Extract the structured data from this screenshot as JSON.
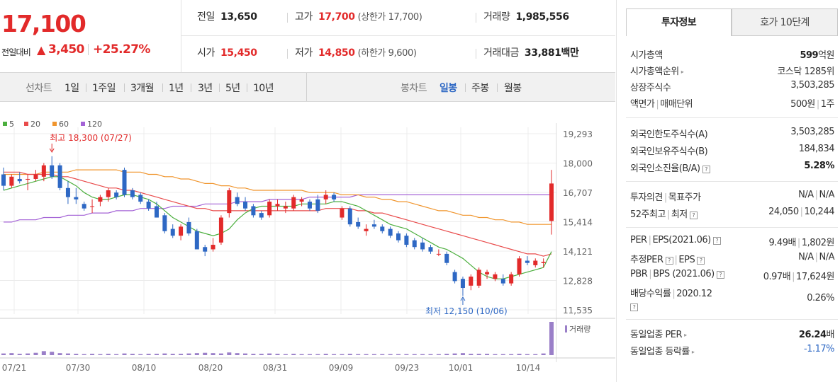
{
  "price": {
    "current": "17,100",
    "change_label": "전일대비",
    "change_arrow": "▲",
    "change_amount": "3,450",
    "change_pct": "+25.27%"
  },
  "stats": {
    "prev_label": "전일",
    "prev_value": "13,650",
    "high_label": "고가",
    "high_value": "17,700",
    "upper_limit": "(상한가 17,700)",
    "volume_label": "거래량",
    "volume_value": "1,985,556",
    "open_label": "시가",
    "open_value": "15,450",
    "low_label": "저가",
    "low_value": "14,850",
    "lower_limit": "(하한가 9,600)",
    "amount_label": "거래대금",
    "amount_value": "33,881",
    "amount_unit": "백만"
  },
  "toolbar": {
    "line_chart_label": "선차트",
    "line_periods": [
      "1일",
      "1주일",
      "3개월",
      "1년",
      "3년",
      "5년",
      "10년"
    ],
    "candle_label": "봉차트",
    "candle_periods": [
      "일봉",
      "주봉",
      "월봉"
    ],
    "active_candle_period": "일봉"
  },
  "chart_data": {
    "type": "candlestick",
    "legend": [
      {
        "name": "5",
        "color": "#4caf3e"
      },
      {
        "name": "20",
        "color": "#e94b4b"
      },
      {
        "name": "60",
        "color": "#f0952d"
      },
      {
        "name": "120",
        "color": "#a463d6"
      }
    ],
    "y_ticks": [
      19293,
      18000,
      16707,
      15414,
      14121,
      12828,
      11535
    ],
    "ylim": [
      11535,
      19293
    ],
    "x_ticks": [
      "07/21",
      "07/30",
      "08/10",
      "08/20",
      "08/31",
      "09/09",
      "09/23",
      "10/01",
      "10/14"
    ],
    "annotations": {
      "high": "최고 18,300 (07/27)",
      "low": "최저 12,150 (10/06)"
    },
    "volume_label": "거래량",
    "candles": [
      {
        "o": 17500,
        "h": 17800,
        "l": 16800,
        "c": 17000
      },
      {
        "o": 17000,
        "h": 17500,
        "l": 16900,
        "c": 17400
      },
      {
        "o": 17300,
        "h": 17600,
        "l": 17100,
        "c": 17200
      },
      {
        "o": 17300,
        "h": 17500,
        "l": 16800,
        "c": 17300
      },
      {
        "o": 17300,
        "h": 17700,
        "l": 17200,
        "c": 17500
      },
      {
        "o": 17400,
        "h": 18000,
        "l": 17200,
        "c": 17900
      },
      {
        "o": 17900,
        "h": 18300,
        "l": 17300,
        "c": 17400
      },
      {
        "o": 17900,
        "h": 18000,
        "l": 16800,
        "c": 16900
      },
      {
        "o": 16900,
        "h": 17200,
        "l": 16200,
        "c": 16500
      },
      {
        "o": 16500,
        "h": 16900,
        "l": 16200,
        "c": 16400
      },
      {
        "o": 16200,
        "h": 16300,
        "l": 15900,
        "c": 16000
      },
      {
        "o": 16100,
        "h": 16400,
        "l": 15800,
        "c": 16100
      },
      {
        "o": 16300,
        "h": 16600,
        "l": 16100,
        "c": 16500
      },
      {
        "o": 16500,
        "h": 16900,
        "l": 16300,
        "c": 16800
      },
      {
        "o": 16700,
        "h": 16800,
        "l": 16400,
        "c": 16500
      },
      {
        "o": 17700,
        "h": 17800,
        "l": 16500,
        "c": 16600
      },
      {
        "o": 16800,
        "h": 16900,
        "l": 16400,
        "c": 16500
      },
      {
        "o": 16600,
        "h": 16700,
        "l": 16200,
        "c": 16300
      },
      {
        "o": 16300,
        "h": 16400,
        "l": 15900,
        "c": 16000
      },
      {
        "o": 16100,
        "h": 16300,
        "l": 15600,
        "c": 15600
      },
      {
        "o": 15700,
        "h": 15800,
        "l": 14900,
        "c": 15000
      },
      {
        "o": 15100,
        "h": 15300,
        "l": 14700,
        "c": 14800
      },
      {
        "o": 14800,
        "h": 15300,
        "l": 14600,
        "c": 15200
      },
      {
        "o": 15400,
        "h": 15600,
        "l": 14800,
        "c": 14900
      },
      {
        "o": 15000,
        "h": 15100,
        "l": 14200,
        "c": 14200
      },
      {
        "o": 14300,
        "h": 14400,
        "l": 13900,
        "c": 14100
      },
      {
        "o": 14200,
        "h": 14700,
        "l": 14100,
        "c": 14400
      },
      {
        "o": 14500,
        "h": 15700,
        "l": 14400,
        "c": 15600
      },
      {
        "o": 15800,
        "h": 16900,
        "l": 15600,
        "c": 16800
      },
      {
        "o": 16500,
        "h": 16700,
        "l": 16100,
        "c": 16200
      },
      {
        "o": 16300,
        "h": 16500,
        "l": 15900,
        "c": 16000
      },
      {
        "o": 16100,
        "h": 16200,
        "l": 15600,
        "c": 15700
      },
      {
        "o": 15800,
        "h": 15900,
        "l": 15500,
        "c": 15600
      },
      {
        "o": 15700,
        "h": 16400,
        "l": 15600,
        "c": 16300
      },
      {
        "o": 16100,
        "h": 16400,
        "l": 15900,
        "c": 16200
      },
      {
        "o": 16000,
        "h": 16300,
        "l": 15800,
        "c": 16100
      },
      {
        "o": 16000,
        "h": 16600,
        "l": 15900,
        "c": 16500
      },
      {
        "o": 16300,
        "h": 16500,
        "l": 16100,
        "c": 16400
      },
      {
        "o": 16300,
        "h": 16400,
        "l": 15900,
        "c": 16000
      },
      {
        "o": 16400,
        "h": 16600,
        "l": 15800,
        "c": 15900
      },
      {
        "o": 16400,
        "h": 16800,
        "l": 16200,
        "c": 16600
      },
      {
        "o": 16600,
        "h": 16700,
        "l": 16300,
        "c": 16400
      },
      {
        "o": 15600,
        "h": 16100,
        "l": 15500,
        "c": 16000
      },
      {
        "o": 16000,
        "h": 16100,
        "l": 15200,
        "c": 15300
      },
      {
        "o": 15400,
        "h": 15600,
        "l": 15100,
        "c": 15200
      },
      {
        "o": 15000,
        "h": 15300,
        "l": 14800,
        "c": 15100
      },
      {
        "o": 15300,
        "h": 15500,
        "l": 15100,
        "c": 15200
      },
      {
        "o": 15200,
        "h": 15300,
        "l": 14900,
        "c": 15000
      },
      {
        "o": 15100,
        "h": 15200,
        "l": 14700,
        "c": 14800
      },
      {
        "o": 14900,
        "h": 15000,
        "l": 14500,
        "c": 14600
      },
      {
        "o": 14800,
        "h": 14900,
        "l": 14300,
        "c": 14400
      },
      {
        "o": 14600,
        "h": 14700,
        "l": 14200,
        "c": 14300
      },
      {
        "o": 14500,
        "h": 14700,
        "l": 14100,
        "c": 14200
      },
      {
        "o": 14300,
        "h": 14400,
        "l": 14000,
        "c": 14100
      },
      {
        "o": 14000,
        "h": 14200,
        "l": 13900,
        "c": 14000
      },
      {
        "o": 14000,
        "h": 14100,
        "l": 13500,
        "c": 13600
      },
      {
        "o": 13200,
        "h": 13300,
        "l": 12700,
        "c": 12800
      },
      {
        "o": 12900,
        "h": 13000,
        "l": 12150,
        "c": 12500
      },
      {
        "o": 12600,
        "h": 13100,
        "l": 12400,
        "c": 13000
      },
      {
        "o": 12600,
        "h": 13400,
        "l": 12500,
        "c": 13300
      },
      {
        "o": 13100,
        "h": 13300,
        "l": 12900,
        "c": 13200
      },
      {
        "o": 12900,
        "h": 13200,
        "l": 12800,
        "c": 13100
      },
      {
        "o": 12900,
        "h": 13100,
        "l": 12600,
        "c": 12700
      },
      {
        "o": 12700,
        "h": 13200,
        "l": 12600,
        "c": 13100
      },
      {
        "o": 13100,
        "h": 13900,
        "l": 13000,
        "c": 13800
      },
      {
        "o": 13700,
        "h": 13900,
        "l": 13500,
        "c": 13600
      },
      {
        "o": 13500,
        "h": 13800,
        "l": 13400,
        "c": 13700
      },
      {
        "o": 13600,
        "h": 13800,
        "l": 13400,
        "c": 13650
      },
      {
        "o": 15450,
        "h": 17700,
        "l": 14850,
        "c": 17100
      }
    ],
    "ma5": [
      16800,
      16900,
      17000,
      17100,
      17200,
      17300,
      17400,
      17400,
      17200,
      17000,
      16700,
      16500,
      16400,
      16400,
      16500,
      16600,
      16600,
      16500,
      16400,
      16200,
      15900,
      15600,
      15400,
      15200,
      15000,
      14900,
      14800,
      14900,
      15100,
      15500,
      15800,
      16000,
      16100,
      16100,
      16100,
      16100,
      16100,
      16200,
      16200,
      16200,
      16200,
      16300,
      16300,
      16200,
      16100,
      15900,
      15700,
      15500,
      15300,
      15200,
      15100,
      14900,
      14700,
      14500,
      14300,
      14200,
      14000,
      13800,
      13500,
      13200,
      13000,
      12900,
      12900,
      13000,
      13100,
      13200,
      13300,
      13400,
      14100
    ],
    "ma20": [
      17600,
      17600,
      17600,
      17500,
      17500,
      17500,
      17500,
      17400,
      17400,
      17300,
      17200,
      17100,
      17000,
      16900,
      16900,
      16800,
      16800,
      16700,
      16600,
      16500,
      16400,
      16300,
      16200,
      16100,
      16000,
      16000,
      15900,
      15900,
      15900,
      15900,
      15900,
      15900,
      15900,
      15900,
      15900,
      15900,
      15900,
      15900,
      15900,
      15900,
      16000,
      16000,
      16000,
      16000,
      15900,
      15900,
      15800,
      15800,
      15700,
      15600,
      15500,
      15400,
      15300,
      15200,
      15100,
      15000,
      14900,
      14800,
      14700,
      14600,
      14500,
      14400,
      14300,
      14200,
      14100,
      14000,
      14000,
      13900,
      14000
    ],
    "ma60": [
      17500,
      17500,
      17500,
      17500,
      17500,
      17600,
      17600,
      17600,
      17600,
      17700,
      17700,
      17700,
      17700,
      17700,
      17700,
      17600,
      17600,
      17600,
      17500,
      17500,
      17400,
      17400,
      17300,
      17300,
      17200,
      17100,
      17100,
      17000,
      17000,
      16900,
      16900,
      16800,
      16800,
      16800,
      16800,
      16800,
      16800,
      16800,
      16700,
      16700,
      16700,
      16700,
      16600,
      16600,
      16600,
      16500,
      16500,
      16400,
      16400,
      16300,
      16300,
      16200,
      16100,
      16000,
      15900,
      15900,
      15800,
      15700,
      15700,
      15600,
      15600,
      15500,
      15500,
      15400,
      15400,
      15300,
      15300,
      15300,
      15300
    ],
    "ma120": [
      15400,
      15400,
      15500,
      15500,
      15500,
      15600,
      15600,
      15600,
      15700,
      15700,
      15700,
      15800,
      15800,
      15800,
      15900,
      15900,
      15900,
      16000,
      16000,
      16000,
      16000,
      16100,
      16100,
      16100,
      16100,
      16200,
      16200,
      16200,
      16200,
      16300,
      16300,
      16300,
      16300,
      16400,
      16400,
      16400,
      16400,
      16400,
      16500,
      16500,
      16500,
      16500,
      16500,
      16500,
      16600,
      16600,
      16600,
      16600,
      16600,
      16600,
      16600,
      16600,
      16600,
      16600,
      16600,
      16600,
      16600,
      16600,
      16600,
      16600,
      16600,
      16600,
      16600,
      16600,
      16600,
      16600,
      16600,
      16600,
      16600
    ],
    "volumes": [
      0.05,
      0.06,
      0.04,
      0.05,
      0.07,
      0.12,
      0.1,
      0.06,
      0.05,
      0.04,
      0.03,
      0.04,
      0.03,
      0.04,
      0.03,
      0.05,
      0.04,
      0.03,
      0.04,
      0.04,
      0.05,
      0.04,
      0.04,
      0.05,
      0.06,
      0.07,
      0.06,
      0.05,
      0.08,
      0.06,
      0.05,
      0.04,
      0.04,
      0.05,
      0.04,
      0.03,
      0.04,
      0.03,
      0.03,
      0.03,
      0.04,
      0.03,
      0.03,
      0.04,
      0.03,
      0.03,
      0.03,
      0.03,
      0.03,
      0.03,
      0.03,
      0.03,
      0.03,
      0.03,
      0.03,
      0.04,
      0.05,
      0.06,
      0.04,
      0.04,
      0.04,
      0.03,
      0.03,
      0.03,
      0.04,
      0.03,
      0.03,
      0.05,
      1.0
    ]
  },
  "right_panel": {
    "tabs": [
      "투자정보",
      "호가 10단계"
    ],
    "market_cap_label": "시가총액",
    "market_cap_value": "599",
    "market_cap_unit": "억원",
    "rank_label": "시가총액순위",
    "rank_value": "코스닥 1285위",
    "shares_label": "상장주식수",
    "shares_value": "3,503,285",
    "par_label": "액면가",
    "trade_unit_label": "매매단위",
    "par_value": "500원",
    "trade_unit_value": "1주",
    "foreign_limit_label": "외국인한도주식수(A)",
    "foreign_limit_value": "3,503,285",
    "foreign_hold_label": "외국인보유주식수(B)",
    "foreign_hold_value": "184,834",
    "foreign_ratio_label": "외국인소진율(B/A)",
    "foreign_ratio_value": "5.28%",
    "opinion_label": "투자의견",
    "target_label": "목표주가",
    "opinion_value": "N/A",
    "target_value": "N/A",
    "w52_high_label": "52주최고",
    "w52_low_label": "최저",
    "w52_high_value": "24,050",
    "w52_low_value": "10,244",
    "per_label": "PER",
    "eps_label": "EPS(2021.06)",
    "per_value": "9.49배",
    "eps_value": "1,802원",
    "est_per_label": "추정PER",
    "est_eps_label": "EPS",
    "est_per_value": "N/A",
    "est_eps_value": "N/A",
    "pbr_label": "PBR",
    "bps_label": "BPS (2021.06)",
    "pbr_value": "0.97배",
    "bps_value": "17,624원",
    "div_label": "배당수익률",
    "div_year": "2020.12",
    "div_value": "0.26%",
    "ind_per_label": "동일업종 PER",
    "ind_per_value": "26.24",
    "ind_per_unit": "배",
    "ind_rate_label": "동일업종 등락률",
    "ind_rate_value": "-1.17%"
  }
}
